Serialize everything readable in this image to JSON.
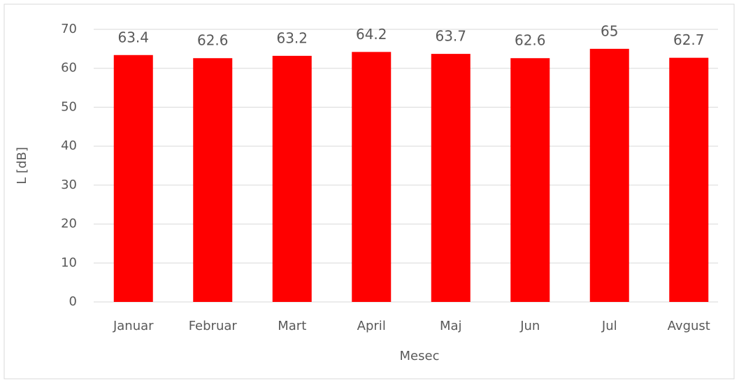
{
  "chart_data": {
    "type": "bar",
    "categories": [
      "Januar",
      "Februar",
      "Mart",
      "April",
      "Maj",
      "Jun",
      "Jul",
      "Avgust"
    ],
    "values": [
      63.4,
      62.6,
      63.2,
      64.2,
      63.7,
      62.6,
      65,
      62.7
    ],
    "color": "#ff0000",
    "ylim": [
      0,
      70
    ],
    "yticks": [
      0,
      10,
      20,
      30,
      40,
      50,
      60,
      70
    ],
    "grid": true,
    "x_label": "Mesec",
    "y_label": "L [dB]"
  }
}
